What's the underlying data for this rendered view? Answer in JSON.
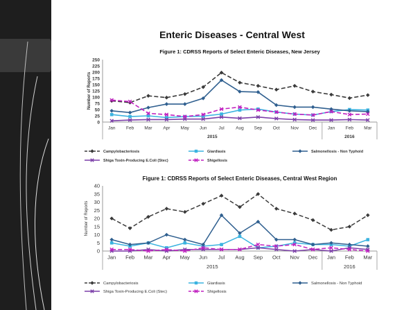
{
  "slide": {
    "title": "Enteric Diseases - Central West"
  },
  "chart_data": [
    {
      "type": "line",
      "title": "Figure 1: CDRSS Reports of Select Enteric Diseases, New Jersey",
      "xlabel": "",
      "ylabel": "Number of Reports",
      "ylim": [
        0,
        250
      ],
      "yticks": [
        "0",
        "25",
        "50",
        "75",
        "100",
        "125",
        "150",
        "175",
        "200",
        "225",
        "250"
      ],
      "categories": [
        "Jan",
        "Feb",
        "Mar",
        "Apr",
        "May",
        "Jun",
        "Jul",
        "Aug",
        "Sep",
        "Oct",
        "Nov",
        "Dec",
        "Jan",
        "Feb",
        "Mar"
      ],
      "year_groups": [
        {
          "label": "2015",
          "span": 12
        },
        {
          "label": "2016",
          "span": 3
        }
      ],
      "grid": false,
      "legend_position": "bottom",
      "series": [
        {
          "name": "Campylobacteriosis",
          "color": "#3a3a3a",
          "dash": "6,3",
          "marker": "diamond",
          "values": [
            85,
            78,
            105,
            98,
            112,
            140,
            198,
            158,
            145,
            130,
            145,
            122,
            110,
            96,
            108
          ]
        },
        {
          "name": "Giardiasis",
          "color": "#3bb3e0",
          "dash": "",
          "marker": "square",
          "values": [
            30,
            22,
            25,
            18,
            22,
            24,
            32,
            48,
            52,
            40,
            32,
            28,
            42,
            50,
            48
          ]
        },
        {
          "name": "Salmonellosis - Non Typhoid",
          "color": "#2f5f8f",
          "dash": "",
          "marker": "diamond",
          "values": [
            45,
            38,
            58,
            72,
            72,
            95,
            168,
            122,
            120,
            68,
            60,
            60,
            52,
            45,
            42
          ]
        },
        {
          "name": "Shiga Toxin-Producing E.Coli (Stec)",
          "color": "#7b3fa8",
          "dash": "",
          "marker": "x",
          "values": [
            5,
            8,
            10,
            10,
            12,
            12,
            20,
            15,
            20,
            14,
            10,
            8,
            8,
            10,
            8
          ]
        },
        {
          "name": "Shigellosis",
          "color": "#c020c0",
          "dash": "6,3",
          "marker": "x",
          "values": [
            88,
            82,
            35,
            30,
            22,
            30,
            52,
            60,
            48,
            40,
            32,
            28,
            42,
            30,
            32
          ]
        }
      ]
    },
    {
      "type": "line",
      "title": "Figure 1: CDRSS Reports of Select Enteric Diseases, Central West Region",
      "xlabel": "",
      "ylabel": "Number of Reports",
      "ylim": [
        0,
        40
      ],
      "yticks": [
        "0",
        "5",
        "10",
        "15",
        "20",
        "25",
        "30",
        "35",
        "40"
      ],
      "categories": [
        "Jan",
        "Feb",
        "Mar",
        "Apr",
        "May",
        "Jun",
        "Jul",
        "Aug",
        "Sep",
        "Oct",
        "Nov",
        "Dec",
        "Jan",
        "Feb",
        "Mar"
      ],
      "year_groups": [
        {
          "label": "2015",
          "span": 12
        },
        {
          "label": "2016",
          "span": 3
        }
      ],
      "grid": false,
      "legend_position": "bottom",
      "series": [
        {
          "name": "Campylobacteriosis",
          "color": "#3a3a3a",
          "dash": "6,3",
          "marker": "diamond",
          "values": [
            20,
            14,
            21,
            26,
            24,
            29,
            34,
            27,
            35,
            26,
            23,
            19,
            13,
            15,
            22
          ]
        },
        {
          "name": "Giardiasis",
          "color": "#3bb3e0",
          "dash": "",
          "marker": "square",
          "values": [
            5,
            3,
            5,
            2,
            5,
            3,
            4,
            9,
            2,
            3,
            5,
            4,
            4,
            3,
            7
          ]
        },
        {
          "name": "Salmonellosis - Non Typhoid",
          "color": "#2f5f8f",
          "dash": "",
          "marker": "diamond",
          "values": [
            7,
            4,
            5,
            10,
            7,
            4,
            22,
            11,
            18,
            7,
            7,
            4,
            5,
            4,
            3
          ]
        },
        {
          "name": "Shiga Toxin-Producing E.Coli (Stec)",
          "color": "#7b3fa8",
          "dash": "",
          "marker": "x",
          "values": [
            0,
            0,
            1,
            0,
            1,
            1,
            1,
            1,
            2,
            1,
            0,
            1,
            0,
            2,
            1
          ]
        },
        {
          "name": "Shigellosis",
          "color": "#c020c0",
          "dash": "6,3",
          "marker": "x",
          "values": [
            1,
            1,
            0,
            1,
            0,
            2,
            1,
            1,
            4,
            3,
            4,
            1,
            2,
            1,
            0
          ]
        }
      ]
    }
  ]
}
